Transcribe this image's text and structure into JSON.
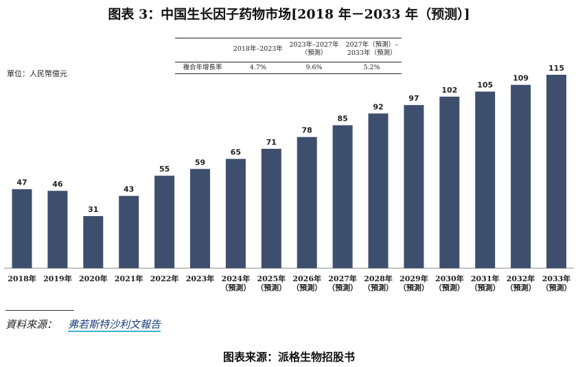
{
  "chart_data": {
    "type": "bar",
    "title": "图表 3：中国生长因子药物市场[2018 年－2033 年（预测）]",
    "unit_label": "單位：人民幣億元",
    "categories": [
      "2018年",
      "2019年",
      "2020年",
      "2021年",
      "2022年",
      "2023年",
      "2024年\n（預測）",
      "2025年\n（預測）",
      "2026年\n（預測）",
      "2027年\n（預測）",
      "2028年\n（預測）",
      "2029年\n（預測）",
      "2030年\n（預測）",
      "2031年\n（預測）",
      "2032年\n（預測）",
      "2033年\n（預測）"
    ],
    "values": [
      47,
      46,
      31,
      43,
      55,
      59,
      65,
      71,
      78,
      85,
      92,
      97,
      102,
      105,
      109,
      115
    ],
    "color": "#3e4f6e",
    "cagr_table": {
      "header": [
        "2018年–2023年",
        "2023年–2027年\n（預測）",
        "2027年（預測）–\n2033年（預測）"
      ],
      "row_label": "複合年增長率",
      "row": [
        "4.7%",
        "9.6%",
        "5.2%"
      ]
    },
    "source_label": "資料來源：",
    "source": "弗若斯特沙利文報告"
  },
  "footer": "图表来源：派格生物招股书"
}
